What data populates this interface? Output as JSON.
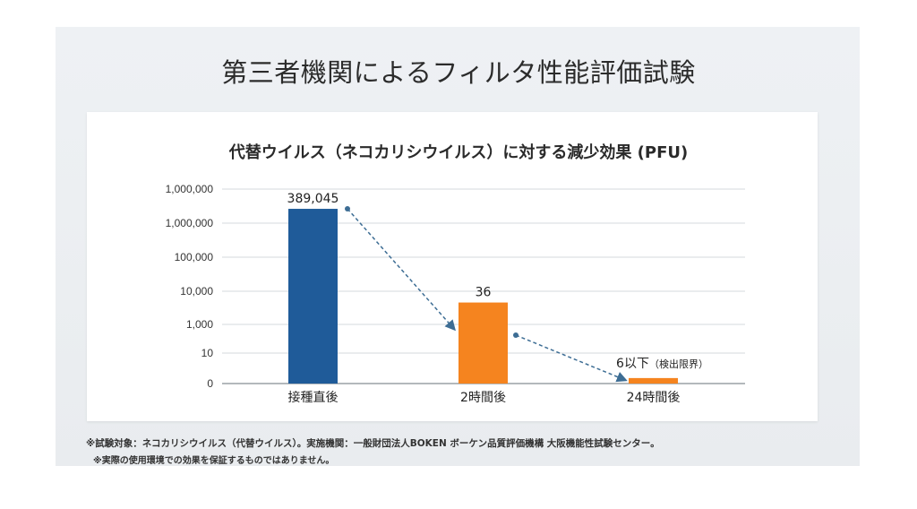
{
  "page_title": "第三者機関によるフィルタ性能評価試験",
  "chart_data": {
    "type": "bar",
    "title": "代替ウイルス（ネコカリシウイルス）に対する減少効果 (PFU)",
    "xlabel": "",
    "ylabel": "",
    "y_tick_labels": [
      "0",
      "10",
      "1,000",
      "10,000",
      "100,000",
      "1,000,000",
      "1,000,000"
    ],
    "y_scale": "log (irregular tick labels as printed)",
    "grid": true,
    "categories": [
      "接種直後",
      "2時間後",
      "24時間後"
    ],
    "values": [
      389045,
      36,
      6
    ],
    "axis_levels": [
      5.42,
      2.66,
      0.18
    ],
    "data_labels": [
      "389,045",
      "36",
      "6以下"
    ],
    "data_label_notes": [
      "",
      "",
      "（検出限界）"
    ],
    "bar_colors": [
      "#1f5b99",
      "#f5841f",
      "#f5841f"
    ],
    "trend_color": "#3d6d94"
  },
  "footnotes": [
    "※試験対象：ネコカリシウイルス（代替ウイルス）。実施機関：一般財団法人BOKEN ボーケン品質評価機構 大阪機能性試験センター。",
    "※実際の使用環境での効果を保証するものではありません。"
  ]
}
